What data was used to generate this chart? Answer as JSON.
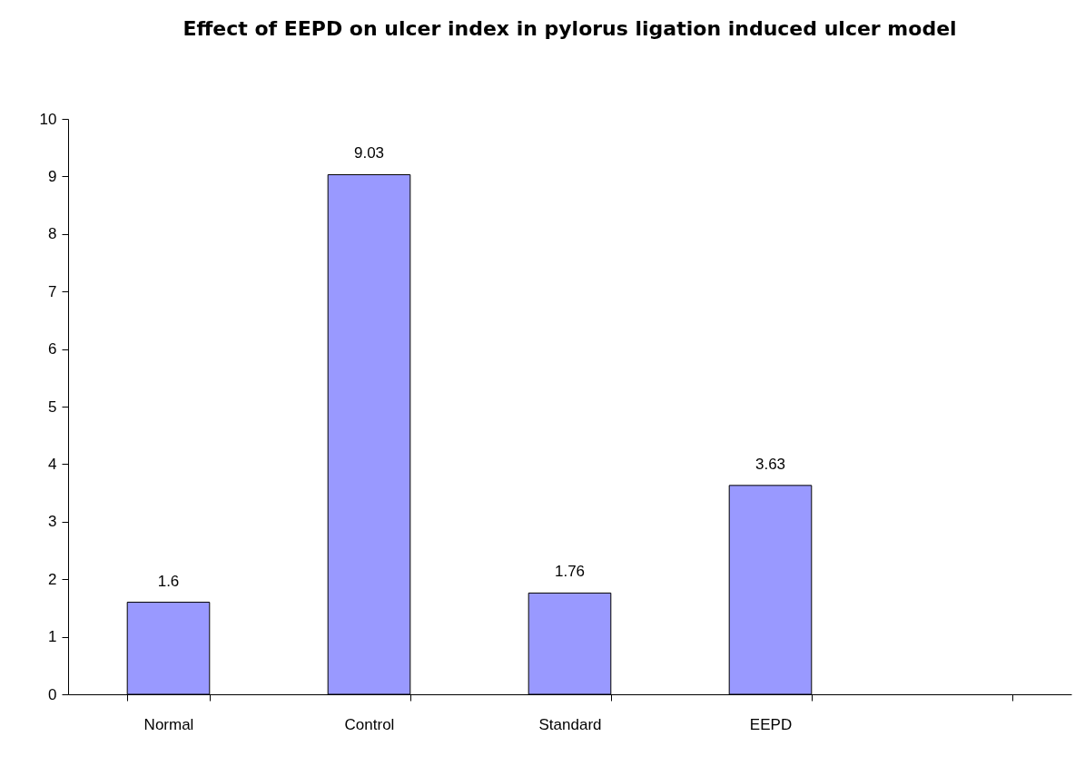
{
  "chart_data": {
    "type": "bar",
    "title": "Effect of EEPD on ulcer index in pylorus ligation induced ulcer model",
    "categories": [
      "Normal",
      "Control",
      "Standard",
      "EEPD",
      null
    ],
    "values": [
      1.6,
      9.03,
      1.76,
      3.63,
      null
    ],
    "color": "#9999ff",
    "ylim": [
      0,
      10
    ],
    "yticks": [
      0,
      1,
      2,
      3,
      4,
      5,
      6,
      7,
      8,
      9,
      10
    ],
    "grid": false,
    "data_labels": true
  }
}
